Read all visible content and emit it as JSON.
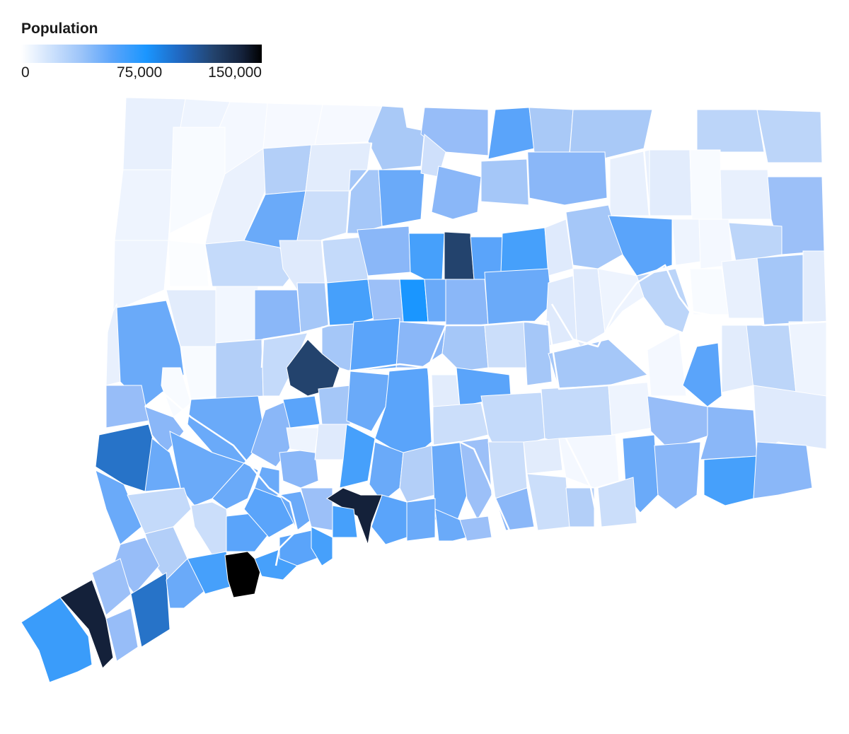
{
  "legend": {
    "title": "Population",
    "ticks": [
      "0",
      "75,000",
      "150,000"
    ],
    "scale_min": 0,
    "scale_max": 150000,
    "colors": [
      "#ffffff",
      "#9cc4f9",
      "#5aa4fa",
      "#1a96ff",
      "#2067c0",
      "#23436d",
      "#14213a",
      "#000000"
    ]
  }
}
